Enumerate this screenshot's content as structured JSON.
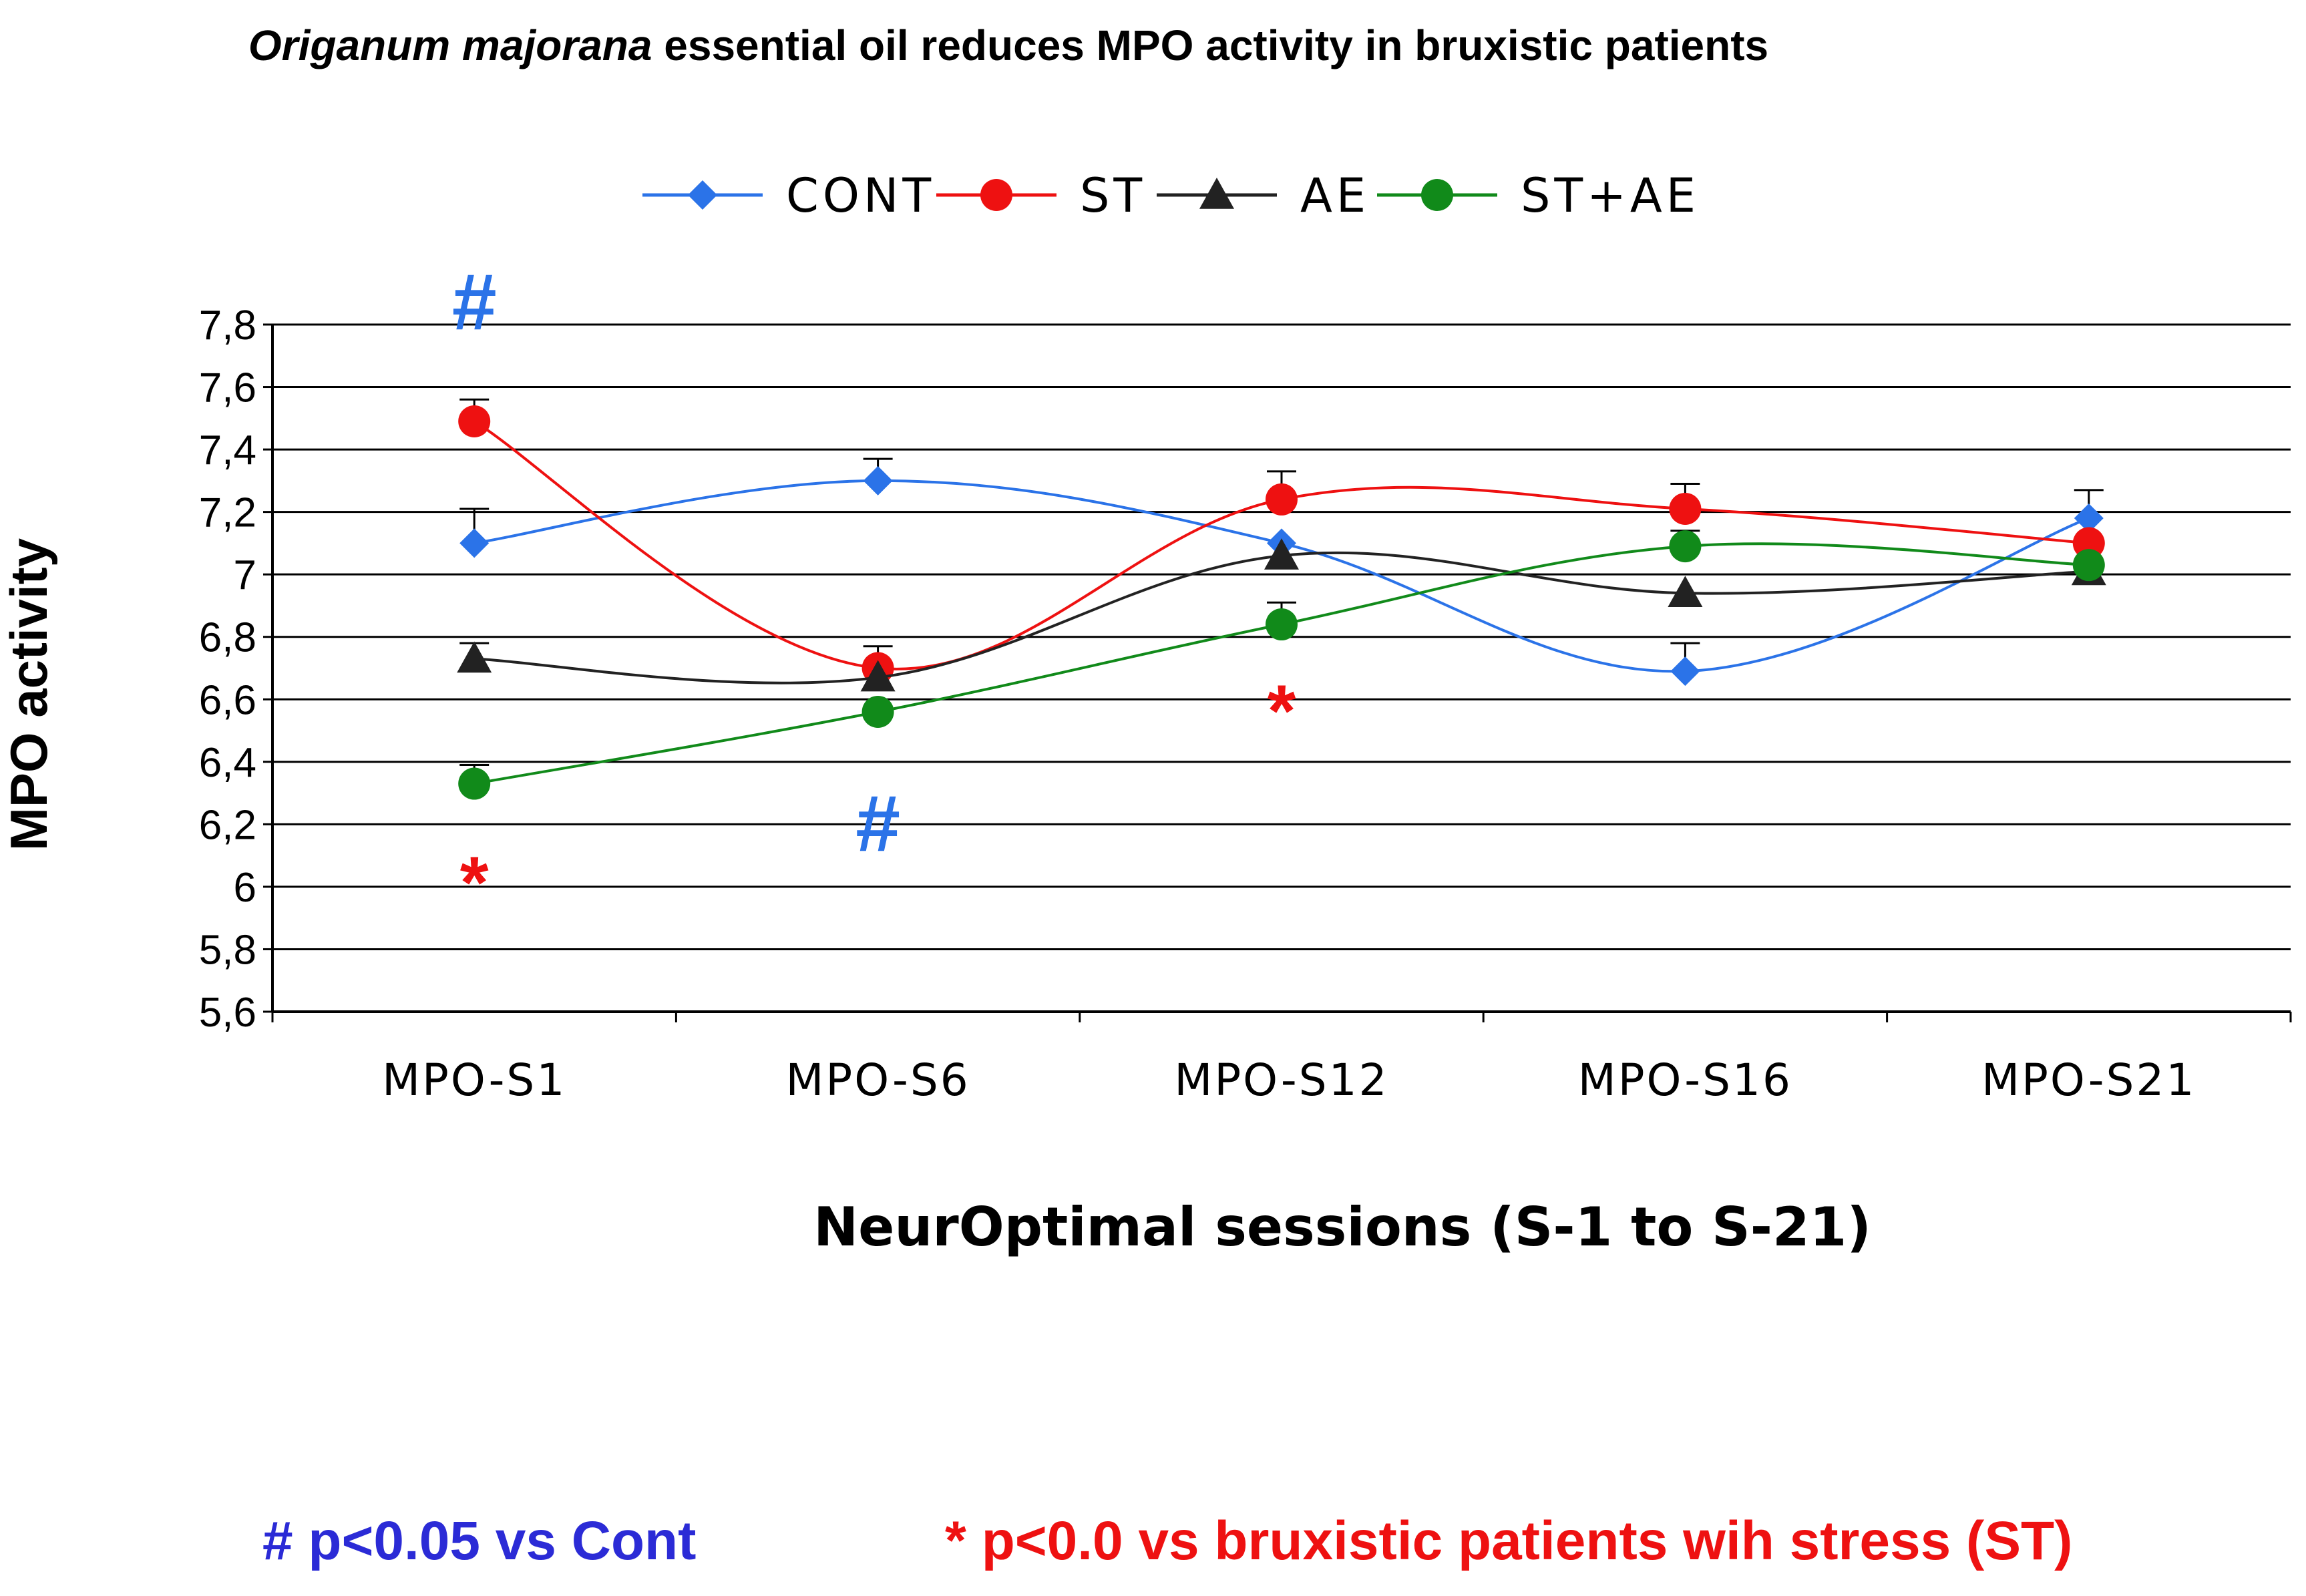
{
  "chart_data": {
    "type": "line",
    "title_italic": "Origanum majorana",
    "title_rest": " essential oil reduces MPO activity in bruxistic patients",
    "xlabel": "NeurOptimal sessions (S-1 to S-21)",
    "ylabel": "MPO activity",
    "ylim": [
      5.6,
      7.8
    ],
    "yticks": [
      {
        "v": 5.6,
        "label": "5,6"
      },
      {
        "v": 5.8,
        "label": "5,8"
      },
      {
        "v": 6.0,
        "label": "6"
      },
      {
        "v": 6.2,
        "label": "6,2"
      },
      {
        "v": 6.4,
        "label": "6,4"
      },
      {
        "v": 6.6,
        "label": "6,6"
      },
      {
        "v": 6.8,
        "label": "6,8"
      },
      {
        "v": 7.0,
        "label": "7"
      },
      {
        "v": 7.2,
        "label": "7,2"
      },
      {
        "v": 7.4,
        "label": "7,4"
      },
      {
        "v": 7.6,
        "label": "7,6"
      },
      {
        "v": 7.8,
        "label": "7,8"
      }
    ],
    "categories": [
      "MPO-S1",
      "MPO-S6",
      "MPO-S12",
      "MPO-S16",
      "MPO-S21"
    ],
    "legend_position": "top",
    "grid": true,
    "series": [
      {
        "name": "CONT",
        "color": "#2b73e8",
        "marker": "diamond",
        "values": [
          7.1,
          7.3,
          7.1,
          6.69,
          7.18
        ],
        "errors": [
          0.11,
          0.07,
          null,
          0.09,
          0.09
        ]
      },
      {
        "name": "ST",
        "color": "#ee1111",
        "marker": "circle",
        "values": [
          7.49,
          6.7,
          7.24,
          7.21,
          7.1
        ],
        "errors": [
          0.07,
          0.07,
          0.09,
          0.08,
          null
        ]
      },
      {
        "name": "AE",
        "color": "#222222",
        "marker": "triangle",
        "values": [
          6.73,
          6.67,
          7.06,
          6.94,
          7.01
        ],
        "errors": [
          0.05,
          null,
          null,
          null,
          null
        ]
      },
      {
        "name": "ST+AE",
        "color": "#118a1a",
        "marker": "circle",
        "values": [
          6.33,
          6.56,
          6.84,
          7.09,
          7.03
        ],
        "errors": [
          0.06,
          null,
          0.07,
          0.05,
          null
        ]
      }
    ],
    "annotations": [
      {
        "text": "#",
        "category": 0,
        "y": 7.87,
        "color": "#2b73e8",
        "size": "large"
      },
      {
        "text": "*",
        "category": 0,
        "y": 6.05,
        "color": "#ee1111",
        "size": "large"
      },
      {
        "text": "#",
        "category": 1,
        "y": 6.2,
        "color": "#2b73e8",
        "size": "large"
      },
      {
        "text": "*",
        "category": 2,
        "y": 6.6,
        "color": "#ee1111",
        "size": "large"
      }
    ]
  },
  "footnotes": {
    "left": "# p<0.05 vs Cont",
    "left_color": "#2b2bd6",
    "right": "* p<0.0 vs bruxistic patients wih stress (ST)",
    "right_color": "#ee1111"
  }
}
